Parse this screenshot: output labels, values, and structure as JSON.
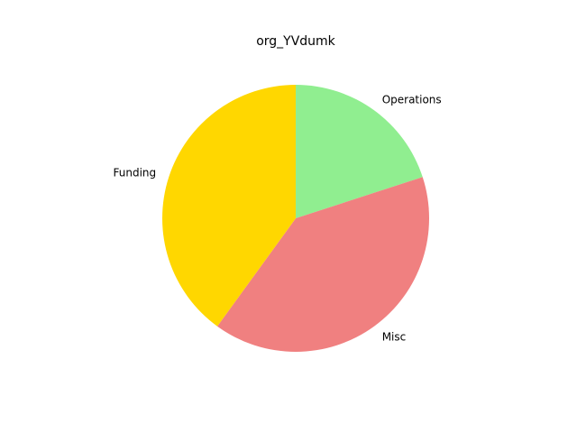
{
  "chart_data": {
    "type": "pie",
    "title": "org_YVdumk",
    "categories": [
      "Operations",
      "Misc",
      "Funding"
    ],
    "values": [
      20,
      40,
      40
    ],
    "colors": [
      "#90ee90",
      "#f08080",
      "#ffd700"
    ],
    "start_angle_deg": 90,
    "direction": "clockwise",
    "legend": "none"
  }
}
